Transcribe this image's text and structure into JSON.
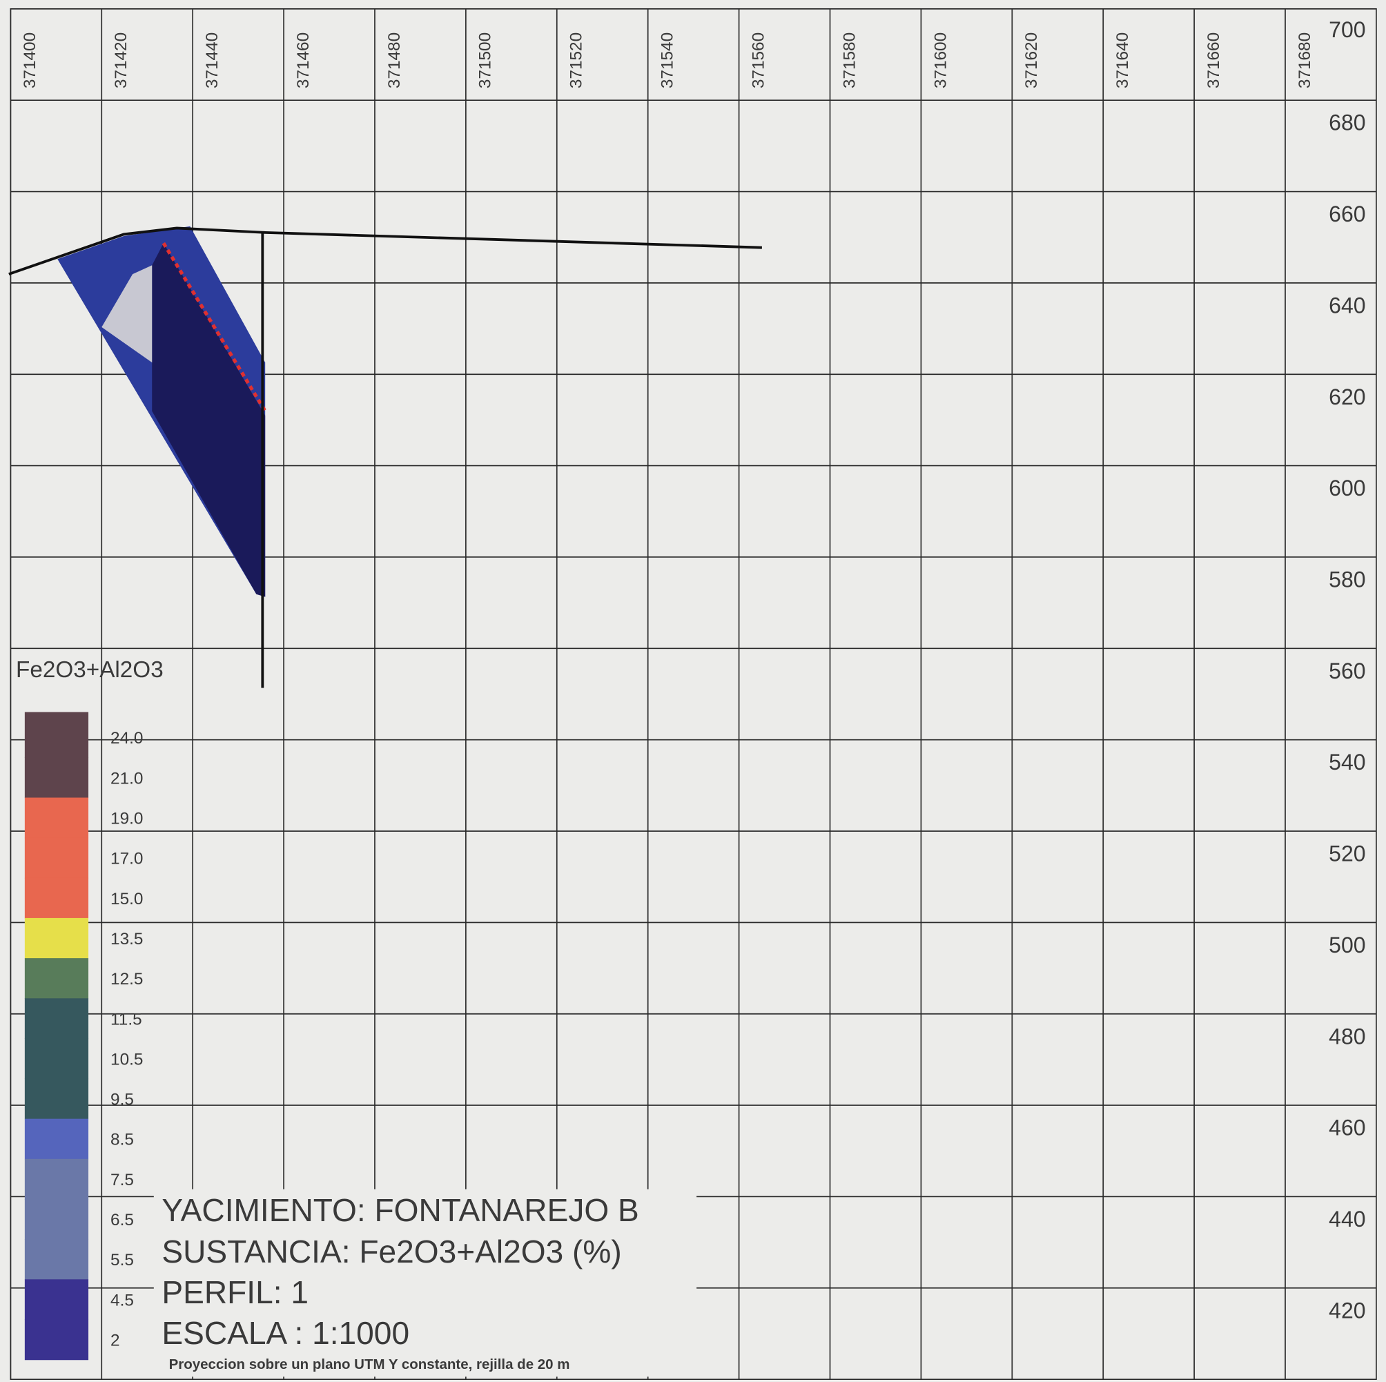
{
  "chart_data": {
    "type": "section",
    "x_ticks": [
      371400,
      371420,
      371440,
      371460,
      371480,
      371500,
      371520,
      371540,
      371560,
      371580,
      371600,
      371620,
      371640,
      371660,
      371680
    ],
    "y_ticks": [
      700,
      680,
      660,
      640,
      620,
      600,
      580,
      560,
      540,
      520,
      500,
      480,
      460,
      440,
      420
    ],
    "xlim": [
      371400,
      371700
    ],
    "ylim": [
      400,
      700
    ],
    "legend": {
      "title": "Fe2O3+Al2O3",
      "levels": [
        "24.0",
        "21.0",
        "19.0",
        "17.0",
        "15.0",
        "13.5",
        "12.5",
        "11.5",
        "10.5",
        "9.5",
        "8.5",
        "7.5",
        "6.5",
        "5.5",
        "4.5",
        "2"
      ],
      "colors": [
        "#5e444c",
        "#5e444c",
        "#e8674f",
        "#e8674f",
        "#e8674f",
        "#e6df4a",
        "#587c5a",
        "#36585e",
        "#36585e",
        "#36585e",
        "#5565bc",
        "#6a78a8",
        "#6a78a8",
        "#6a78a8",
        "#3a3290",
        "#3a3290"
      ]
    },
    "info": {
      "lines": [
        "YACIMIENTO: FONTANAREJO B",
        "SUSTANCIA: Fe2O3+Al2O3 (%)",
        "PERFIL: 1",
        "ESCALA : 1:1000"
      ],
      "note": "Proyeccion sobre un plano UTM Y constante, rejilla de 20 m"
    }
  }
}
